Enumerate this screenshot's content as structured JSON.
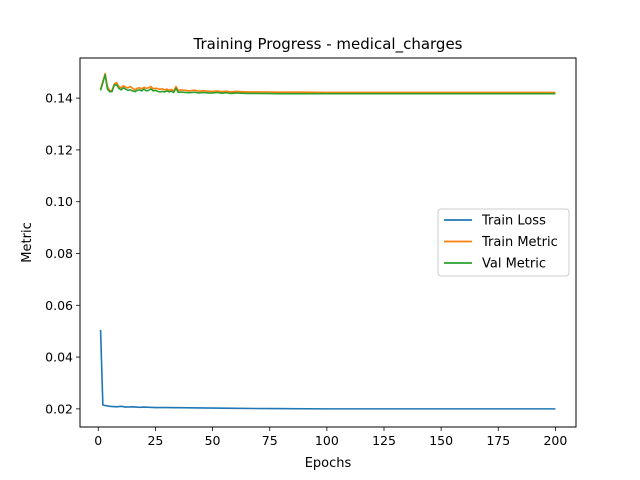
{
  "chart_data": {
    "type": "line",
    "title": "Training Progress - medical_charges",
    "xlabel": "Epochs",
    "ylabel": "Metric",
    "xlim": [
      -8,
      209
    ],
    "ylim": [
      0.013,
      0.1555
    ],
    "xticks": [
      0,
      25,
      50,
      75,
      100,
      125,
      150,
      175,
      200
    ],
    "yticks": [
      0.02,
      0.04,
      0.06,
      0.08,
      0.1,
      0.12,
      0.14
    ],
    "ytick_labels": [
      "0.02",
      "0.04",
      "0.06",
      "0.08",
      "0.10",
      "0.12",
      "0.14"
    ],
    "grid": false,
    "legend_position": "center-right",
    "series": [
      {
        "name": "Train Loss",
        "color": "#1f77b4",
        "points": [
          [
            1,
            0.0505
          ],
          [
            2,
            0.0215
          ],
          [
            3,
            0.0213
          ],
          [
            5,
            0.021
          ],
          [
            8,
            0.0208
          ],
          [
            10,
            0.021
          ],
          [
            12,
            0.0207
          ],
          [
            15,
            0.0208
          ],
          [
            18,
            0.0206
          ],
          [
            20,
            0.0207
          ],
          [
            25,
            0.0205
          ],
          [
            30,
            0.0205
          ],
          [
            40,
            0.0204
          ],
          [
            50,
            0.0203
          ],
          [
            60,
            0.0202
          ],
          [
            75,
            0.0201
          ],
          [
            100,
            0.02
          ],
          [
            125,
            0.02
          ],
          [
            150,
            0.02
          ],
          [
            175,
            0.02
          ],
          [
            200,
            0.02
          ]
        ]
      },
      {
        "name": "Train Metric",
        "color": "#ff7f0e",
        "points": [
          [
            1,
            0.1435
          ],
          [
            2,
            0.1465
          ],
          [
            3,
            0.1495
          ],
          [
            4,
            0.1445
          ],
          [
            5,
            0.1428
          ],
          [
            6,
            0.143
          ],
          [
            7,
            0.1455
          ],
          [
            8,
            0.146
          ],
          [
            9,
            0.1445
          ],
          [
            10,
            0.144
          ],
          [
            11,
            0.1448
          ],
          [
            12,
            0.1442
          ],
          [
            13,
            0.144
          ],
          [
            14,
            0.1445
          ],
          [
            15,
            0.1438
          ],
          [
            16,
            0.1432
          ],
          [
            17,
            0.1438
          ],
          [
            18,
            0.144
          ],
          [
            19,
            0.1436
          ],
          [
            20,
            0.1442
          ],
          [
            21,
            0.1438
          ],
          [
            22,
            0.144
          ],
          [
            23,
            0.1445
          ],
          [
            24,
            0.1436
          ],
          [
            25,
            0.1438
          ],
          [
            26,
            0.1437
          ],
          [
            27,
            0.1434
          ],
          [
            28,
            0.1436
          ],
          [
            29,
            0.1432
          ],
          [
            30,
            0.1435
          ],
          [
            31,
            0.143
          ],
          [
            32,
            0.1434
          ],
          [
            33,
            0.1428
          ],
          [
            34,
            0.1445
          ],
          [
            35,
            0.143
          ],
          [
            36,
            0.1432
          ],
          [
            38,
            0.143
          ],
          [
            40,
            0.1428
          ],
          [
            42,
            0.1431
          ],
          [
            44,
            0.1427
          ],
          [
            46,
            0.1429
          ],
          [
            48,
            0.1427
          ],
          [
            50,
            0.1426
          ],
          [
            52,
            0.1428
          ],
          [
            54,
            0.1425
          ],
          [
            56,
            0.1427
          ],
          [
            58,
            0.1424
          ],
          [
            60,
            0.1426
          ],
          [
            65,
            0.1424
          ],
          [
            70,
            0.1424
          ],
          [
            80,
            0.1423
          ],
          [
            90,
            0.1423
          ],
          [
            100,
            0.1422
          ],
          [
            125,
            0.1422
          ],
          [
            150,
            0.1422
          ],
          [
            175,
            0.1422
          ],
          [
            200,
            0.1422
          ]
        ]
      },
      {
        "name": "Val Metric",
        "color": "#2ca02c",
        "points": [
          [
            1,
            0.143
          ],
          [
            2,
            0.146
          ],
          [
            3,
            0.149
          ],
          [
            4,
            0.1435
          ],
          [
            5,
            0.1425
          ],
          [
            6,
            0.1425
          ],
          [
            7,
            0.145
          ],
          [
            8,
            0.1452
          ],
          [
            9,
            0.1438
          ],
          [
            10,
            0.1432
          ],
          [
            11,
            0.144
          ],
          [
            12,
            0.1435
          ],
          [
            13,
            0.143
          ],
          [
            14,
            0.1432
          ],
          [
            15,
            0.1428
          ],
          [
            16,
            0.1425
          ],
          [
            17,
            0.143
          ],
          [
            18,
            0.1432
          ],
          [
            19,
            0.1428
          ],
          [
            20,
            0.1435
          ],
          [
            21,
            0.1428
          ],
          [
            22,
            0.143
          ],
          [
            23,
            0.1436
          ],
          [
            24,
            0.1428
          ],
          [
            25,
            0.143
          ],
          [
            26,
            0.1426
          ],
          [
            27,
            0.1424
          ],
          [
            28,
            0.1426
          ],
          [
            29,
            0.1424
          ],
          [
            30,
            0.1428
          ],
          [
            31,
            0.1424
          ],
          [
            32,
            0.1427
          ],
          [
            33,
            0.1422
          ],
          [
            34,
            0.1438
          ],
          [
            35,
            0.1422
          ],
          [
            36,
            0.1424
          ],
          [
            38,
            0.1422
          ],
          [
            40,
            0.1421
          ],
          [
            42,
            0.1423
          ],
          [
            44,
            0.142
          ],
          [
            46,
            0.1422
          ],
          [
            48,
            0.142
          ],
          [
            50,
            0.142
          ],
          [
            52,
            0.1422
          ],
          [
            54,
            0.1419
          ],
          [
            56,
            0.1421
          ],
          [
            58,
            0.1418
          ],
          [
            60,
            0.142
          ],
          [
            65,
            0.1418
          ],
          [
            70,
            0.1418
          ],
          [
            80,
            0.1417
          ],
          [
            90,
            0.1417
          ],
          [
            100,
            0.1417
          ],
          [
            125,
            0.1417
          ],
          [
            150,
            0.1417
          ],
          [
            175,
            0.1417
          ],
          [
            200,
            0.1417
          ]
        ]
      }
    ]
  }
}
